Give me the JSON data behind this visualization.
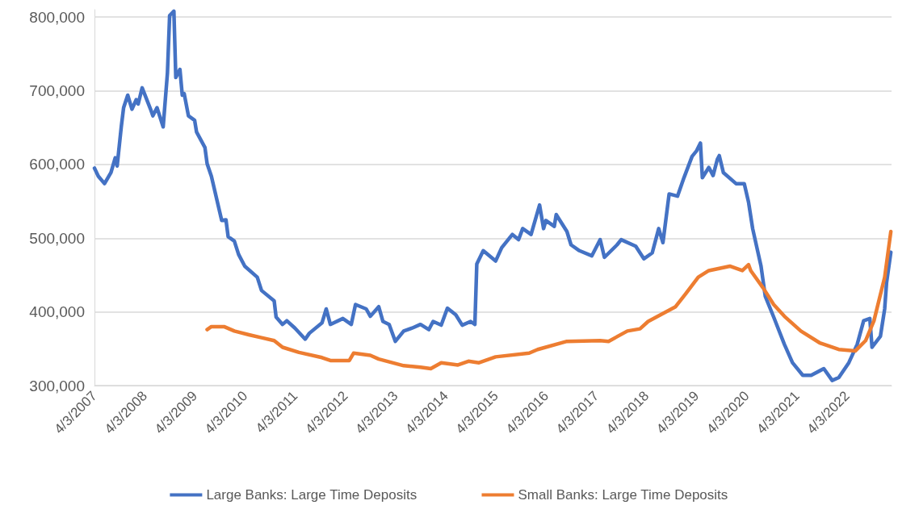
{
  "chart_data": {
    "type": "line",
    "marker": "none",
    "line_style": "solid",
    "grid": "y",
    "legend": "bottom",
    "xlim": [
      "2007-04-03",
      "2023-02-20"
    ],
    "xticks": [
      {
        "value": "2007-04-03",
        "label": "4/3/2007"
      },
      {
        "value": "2008-04-03",
        "label": "4/3/2008"
      },
      {
        "value": "2009-04-03",
        "label": "4/3/2009"
      },
      {
        "value": "2010-04-03",
        "label": "4/3/2010"
      },
      {
        "value": "2011-04-03",
        "label": "4/3/2011"
      },
      {
        "value": "2012-04-03",
        "label": "4/3/2012"
      },
      {
        "value": "2013-04-03",
        "label": "4/3/2013"
      },
      {
        "value": "2014-04-03",
        "label": "4/3/2014"
      },
      {
        "value": "2015-04-03",
        "label": "4/3/2015"
      },
      {
        "value": "2016-04-03",
        "label": "4/3/2016"
      },
      {
        "value": "2017-04-03",
        "label": "4/3/2017"
      },
      {
        "value": "2018-04-03",
        "label": "4/3/2018"
      },
      {
        "value": "2019-04-03",
        "label": "4/3/2019"
      },
      {
        "value": "2020-04-03",
        "label": "4/3/2020"
      },
      {
        "value": "2021-04-03",
        "label": "4/3/2021"
      },
      {
        "value": "2022-04-03",
        "label": "4/3/2022"
      }
    ],
    "ylim": [
      300000,
      810000
    ],
    "yticks": [
      {
        "value": 300000,
        "label": "300,000"
      },
      {
        "value": 400000,
        "label": "400,000"
      },
      {
        "value": 500000,
        "label": "500,000"
      },
      {
        "value": 600000,
        "label": "600,000"
      },
      {
        "value": 700000,
        "label": "700,000"
      },
      {
        "value": 800000,
        "label": "800,000"
      }
    ],
    "series": [
      {
        "name": "Large Banks: Large Time Deposits",
        "color": "#4472c4",
        "x": [
          "2007-04-03",
          "2007-05-01",
          "2007-06-15",
          "2007-08-01",
          "2007-09-01",
          "2007-09-15",
          "2007-10-15",
          "2007-11-01",
          "2007-12-01",
          "2008-01-01",
          "2008-02-01",
          "2008-02-15",
          "2008-03-15",
          "2008-05-15",
          "2008-06-01",
          "2008-07-01",
          "2008-08-15",
          "2008-09-15",
          "2008-10-01",
          "2008-11-01",
          "2008-11-15",
          "2008-12-15",
          "2009-01-01",
          "2009-01-15",
          "2009-02-15",
          "2009-04-01",
          "2009-04-15",
          "2009-06-15",
          "2009-07-01",
          "2009-08-01",
          "2009-10-15",
          "2009-11-15",
          "2009-12-01",
          "2010-01-15",
          "2010-02-15",
          "2010-04-01",
          "2010-07-01",
          "2010-08-01",
          "2010-11-01",
          "2010-11-15",
          "2011-01-01",
          "2011-02-01",
          "2011-04-01",
          "2011-06-15",
          "2011-07-15",
          "2011-10-15",
          "2011-11-15",
          "2011-12-15",
          "2012-03-15",
          "2012-05-15",
          "2012-06-15",
          "2012-09-01",
          "2012-10-01",
          "2012-12-01",
          "2013-01-01",
          "2013-02-15",
          "2013-04-01",
          "2013-06-01",
          "2013-08-01",
          "2013-10-01",
          "2013-12-01",
          "2014-01-01",
          "2014-03-01",
          "2014-04-15",
          "2014-06-15",
          "2014-08-01",
          "2014-10-01",
          "2014-11-01",
          "2014-11-15",
          "2015-01-01",
          "2015-04-01",
          "2015-05-15",
          "2015-08-01",
          "2015-09-15",
          "2015-10-15",
          "2015-12-15",
          "2016-02-15",
          "2016-03-15",
          "2016-04-01",
          "2016-06-01",
          "2016-06-15",
          "2016-09-01",
          "2016-10-01",
          "2016-12-01",
          "2017-03-01",
          "2017-05-01",
          "2017-06-01",
          "2017-09-01",
          "2017-10-01",
          "2018-01-15",
          "2018-03-15",
          "2018-05-15",
          "2018-07-01",
          "2018-08-01",
          "2018-09-15",
          "2018-11-15",
          "2019-01-01",
          "2019-03-01",
          "2019-04-01",
          "2019-05-01",
          "2019-05-15",
          "2019-07-01",
          "2019-08-01",
          "2019-09-01",
          "2019-09-15",
          "2019-10-15",
          "2020-01-15",
          "2020-03-15",
          "2020-04-15",
          "2020-05-15",
          "2020-07-15",
          "2020-08-15",
          "2020-10-15",
          "2021-01-01",
          "2021-03-01",
          "2021-05-15",
          "2021-07-15",
          "2021-10-15",
          "2021-12-15",
          "2022-02-01",
          "2022-04-15",
          "2022-06-15",
          "2022-08-01",
          "2022-09-15",
          "2022-10-01",
          "2022-12-01",
          "2023-01-01",
          "2023-01-15",
          "2023-02-15"
        ],
        "values": [
          595000,
          584000,
          574000,
          589000,
          609000,
          598000,
          651000,
          677000,
          694000,
          675000,
          688000,
          682000,
          704000,
          675000,
          666000,
          677000,
          651000,
          724000,
          802000,
          808000,
          718000,
          729000,
          694000,
          696000,
          666000,
          660000,
          644000,
          623000,
          601000,
          584000,
          524000,
          525000,
          502000,
          496000,
          478000,
          462000,
          447000,
          429000,
          415000,
          393000,
          383000,
          388000,
          378000,
          363000,
          371000,
          385000,
          404000,
          383000,
          391000,
          383000,
          410000,
          404000,
          394000,
          407000,
          387000,
          383000,
          360000,
          374000,
          378000,
          383000,
          376000,
          387000,
          382000,
          405000,
          396000,
          382000,
          387000,
          383000,
          465000,
          483000,
          469000,
          487000,
          505000,
          498000,
          513000,
          505000,
          545000,
          513000,
          524000,
          516000,
          532000,
          509000,
          491000,
          483000,
          476000,
          498000,
          474000,
          491000,
          498000,
          489000,
          472000,
          480000,
          513000,
          494000,
          560000,
          557000,
          582000,
          611000,
          618000,
          629000,
          582000,
          596000,
          585000,
          607000,
          612000,
          589000,
          574000,
          574000,
          549000,
          513000,
          462000,
          421000,
          393000,
          356000,
          331000,
          314000,
          314000,
          323000,
          307000,
          311000,
          331000,
          356000,
          388000,
          391000,
          352000,
          367000,
          404000,
          440000,
          481000
        ]
      },
      {
        "name": "Small Banks: Large Time Deposits",
        "color": "#ed7d31",
        "x": [
          "2009-07-01",
          "2009-08-01",
          "2009-11-01",
          "2010-01-15",
          "2010-05-01",
          "2010-08-01",
          "2010-11-01",
          "2011-01-01",
          "2011-05-01",
          "2011-10-15",
          "2011-12-15",
          "2012-05-01",
          "2012-06-01",
          "2012-10-01",
          "2012-12-01",
          "2013-06-01",
          "2013-10-01",
          "2013-12-15",
          "2014-03-01",
          "2014-07-01",
          "2014-09-15",
          "2014-12-01",
          "2015-04-01",
          "2015-12-01",
          "2016-02-01",
          "2016-09-01",
          "2017-05-01",
          "2017-07-01",
          "2017-11-15",
          "2018-02-15",
          "2018-04-15",
          "2018-11-01",
          "2019-01-15",
          "2019-04-15",
          "2019-07-01",
          "2019-12-01",
          "2020-03-01",
          "2020-04-15",
          "2020-05-01",
          "2020-08-01",
          "2020-10-15",
          "2021-01-01",
          "2021-05-01",
          "2021-09-15",
          "2022-02-01",
          "2022-06-01",
          "2022-08-15",
          "2022-10-15",
          "2023-01-01",
          "2023-02-15"
        ],
        "values": [
          376000,
          380000,
          380000,
          374000,
          369000,
          365000,
          361000,
          352000,
          345000,
          338000,
          334000,
          334000,
          344000,
          341000,
          336000,
          327000,
          325000,
          323000,
          331000,
          328000,
          333000,
          331000,
          339000,
          344000,
          349000,
          360000,
          361000,
          360000,
          374000,
          377000,
          387000,
          407000,
          425000,
          447000,
          456000,
          462000,
          456000,
          464000,
          456000,
          432000,
          410000,
          394000,
          374000,
          358000,
          349000,
          347000,
          361000,
          388000,
          447000,
          509000
        ]
      }
    ]
  }
}
